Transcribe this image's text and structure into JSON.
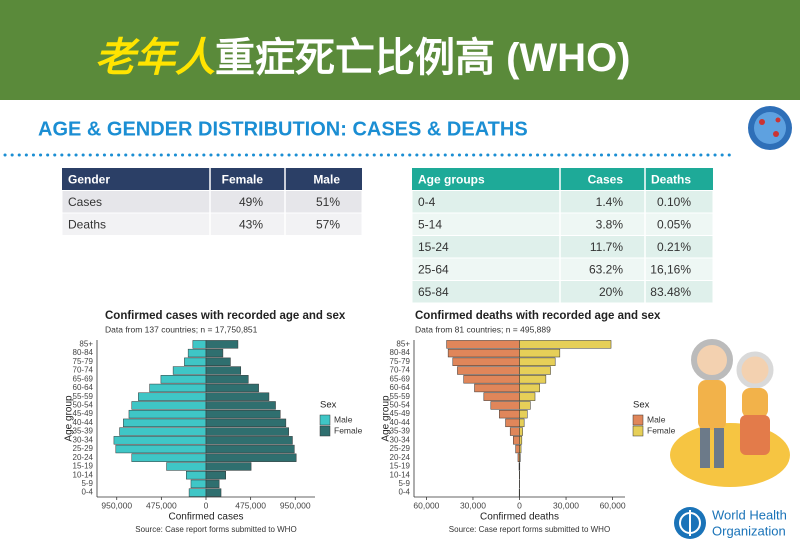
{
  "header": {
    "title_highlight": "老年人",
    "title_rest": "重症死亡比例高 (WHO)"
  },
  "section_title": "AGE & GENDER DISTRIBUTION: CASES & DEATHS",
  "gender_table": {
    "columns": [
      "Gender",
      "Female",
      "Male"
    ],
    "rows": [
      [
        "Cases",
        "49%",
        "51%"
      ],
      [
        "Deaths",
        "43%",
        "57%"
      ]
    ]
  },
  "age_table": {
    "columns": [
      "Age groups",
      "Cases",
      "Deaths"
    ],
    "rows": [
      [
        "0-4",
        "1.4%",
        "0.10%"
      ],
      [
        "5-14",
        "3.8%",
        "0.05%"
      ],
      [
        "15-24",
        "11.7%",
        "0.21%"
      ],
      [
        "25-64",
        "63.2%",
        "16,16%"
      ],
      [
        "65-84",
        "20%",
        "83.48%"
      ]
    ]
  },
  "logo": {
    "line1": "World Health",
    "line2": "Organization"
  },
  "chart_data": [
    {
      "type": "pyramid",
      "title": "Confirmed cases with recorded age and sex",
      "subtitle": "Data from 137 countries; n = 17,750,851",
      "x_label": "Confirmed cases",
      "y_label": "Age group",
      "legend_title": "Sex",
      "source": "Source: Case report forms submitted to WHO",
      "categories": [
        "0-4",
        "5-9",
        "10-14",
        "15-19",
        "20-24",
        "25-29",
        "30-34",
        "35-39",
        "40-44",
        "45-49",
        "50-54",
        "55-59",
        "60-64",
        "65-69",
        "70-74",
        "75-79",
        "80-84",
        "85+"
      ],
      "series": [
        {
          "name": "Male",
          "color": "#3fc6c6",
          "values": [
            -180000,
            -160000,
            -210000,
            -420000,
            -790000,
            -960000,
            -980000,
            -920000,
            -880000,
            -820000,
            -790000,
            -720000,
            -600000,
            -480000,
            -350000,
            -230000,
            -190000,
            -140000
          ]
        },
        {
          "name": "Female",
          "color": "#2f6f6f",
          "values": [
            160000,
            140000,
            210000,
            480000,
            960000,
            940000,
            920000,
            880000,
            850000,
            790000,
            740000,
            670000,
            560000,
            450000,
            370000,
            260000,
            180000,
            340000
          ]
        }
      ],
      "xlim": [
        -1160000,
        1160000
      ],
      "xticks": [
        {
          "value": -950000,
          "label": "950,000"
        },
        {
          "value": -475000,
          "label": "475,000"
        },
        0,
        {
          "value": 475000,
          "label": "475,000"
        },
        {
          "value": 950000,
          "label": "950,000"
        }
      ],
      "grid": false
    },
    {
      "type": "pyramid",
      "title": "Confirmed deaths with recorded age and sex",
      "subtitle": "Data from 81 countries; n = 495,889",
      "x_label": "Confirmed deaths",
      "y_label": "Age group",
      "legend_title": "Sex",
      "source": "Source: Case report forms submitted to WHO",
      "categories": [
        "0-4",
        "5-9",
        "10-14",
        "15-19",
        "20-24",
        "25-29",
        "30-34",
        "35-39",
        "40-44",
        "45-49",
        "50-54",
        "55-59",
        "60-64",
        "65-69",
        "70-74",
        "75-79",
        "80-84",
        "85+"
      ],
      "series": [
        {
          "name": "Male",
          "color": "#e0865a",
          "values": [
            -200,
            -100,
            -100,
            -300,
            -1000,
            -2500,
            -4000,
            -6000,
            -9000,
            -13000,
            -18500,
            -23000,
            -29000,
            -36000,
            -40000,
            -43000,
            -46000,
            -47000
          ]
        },
        {
          "name": "Female",
          "color": "#e6cf58",
          "values": [
            100,
            50,
            100,
            200,
            500,
            1000,
            1500,
            2000,
            3000,
            5000,
            7000,
            10000,
            13000,
            17000,
            20000,
            23000,
            26000,
            59000
          ]
        }
      ],
      "xlim": [
        -68000,
        68000
      ],
      "xticks": [
        {
          "value": -60000,
          "label": "60,000"
        },
        {
          "value": -30000,
          "label": "30,000"
        },
        0,
        {
          "value": 30000,
          "label": "30,000"
        },
        {
          "value": 60000,
          "label": "60,000"
        }
      ],
      "grid": false
    }
  ]
}
